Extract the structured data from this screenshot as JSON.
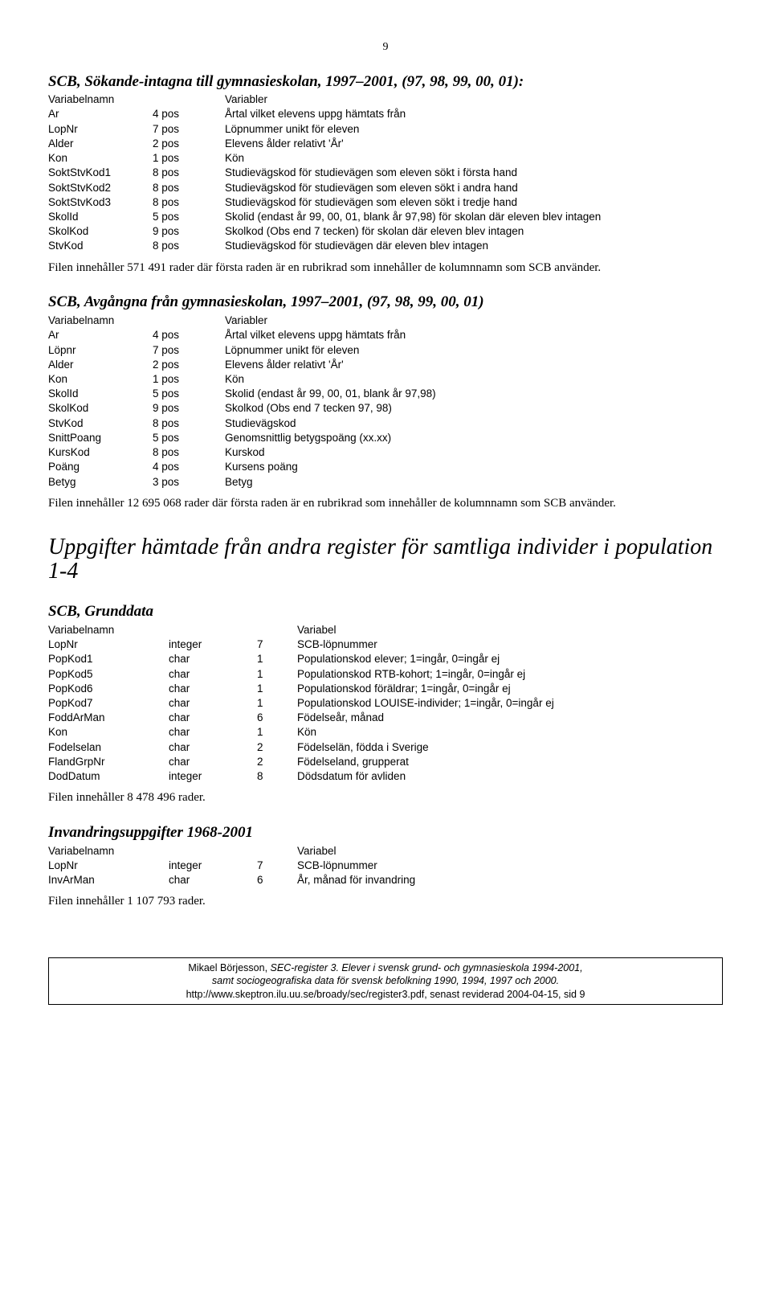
{
  "pageNumber": "9",
  "section1": {
    "title": "SCB, Sökande-intagna till gymnasieskolan, 1997–2001, (97, 98, 99, 00, 01):",
    "headers": [
      "Variabelnamn",
      "",
      "Variabler"
    ],
    "rows": [
      {
        "n": "Ar",
        "p": "4 pos",
        "d": "Årtal vilket elevens uppg hämtats från"
      },
      {
        "n": "LopNr",
        "p": "7 pos",
        "d": "Löpnummer unikt för eleven"
      },
      {
        "n": "Alder",
        "p": "2 pos",
        "d": "Elevens ålder relativt 'År'"
      },
      {
        "n": "Kon",
        "p": "1 pos",
        "d": "Kön"
      },
      {
        "n": "SoktStvKod1",
        "p": "8 pos",
        "d": "Studievägskod för studievägen som eleven sökt i första hand"
      },
      {
        "n": "SoktStvKod2",
        "p": "8 pos",
        "d": "Studievägskod för studievägen som eleven sökt i andra hand"
      },
      {
        "n": "SoktStvKod3",
        "p": "8 pos",
        "d": "Studievägskod för studievägen som eleven sökt i tredje hand"
      },
      {
        "n": "SkolId",
        "p": "5 pos",
        "d": "Skolid (endast år 99, 00, 01, blank år 97,98) för skolan där eleven blev intagen"
      },
      {
        "n": "SkolKod",
        "p": "9 pos",
        "d": "Skolkod (Obs end 7 tecken) för skolan där eleven blev intagen"
      },
      {
        "n": "StvKod",
        "p": "8 pos",
        "d": "Studievägskod för studievägen där eleven blev intagen"
      }
    ],
    "note": "Filen innehåller 571 491 rader där första raden är en rubrikrad som innehåller de kolumnnamn som SCB använder."
  },
  "section2": {
    "title": "SCB, Avgångna från gymnasieskolan, 1997–2001, (97, 98, 99, 00, 01)",
    "headers": [
      "Variabelnamn",
      "",
      "Variabler"
    ],
    "rows": [
      {
        "n": "Ar",
        "p": "4 pos",
        "d": "Årtal vilket elevens uppg hämtats från"
      },
      {
        "n": "Löpnr",
        "p": "7 pos",
        "d": "Löpnummer unikt för eleven"
      },
      {
        "n": "Alder",
        "p": "2 pos",
        "d": "Elevens ålder relativt 'År'"
      },
      {
        "n": "Kon",
        "p": "1 pos",
        "d": "Kön"
      },
      {
        "n": "SkolId",
        "p": "5 pos",
        "d": "Skolid (endast år 99, 00, 01, blank år 97,98)"
      },
      {
        "n": "SkolKod",
        "p": "9 pos",
        "d": "Skolkod (Obs end 7 tecken 97, 98)"
      },
      {
        "n": "StvKod",
        "p": "8 pos",
        "d": "Studievägskod"
      },
      {
        "n": "SnittPoang",
        "p": "5 pos",
        "d": "Genomsnittlig betygspoäng (xx.xx)"
      },
      {
        "n": "KursKod",
        "p": "8 pos",
        "d": "Kurskod"
      },
      {
        "n": "Poäng",
        "p": "4 pos",
        "d": "Kursens poäng"
      },
      {
        "n": "Betyg",
        "p": "3 pos",
        "d": "Betyg"
      }
    ],
    "note": "Filen innehåller 12 695 068 rader där första raden är en rubrikrad som innehåller de kolumnnamn som SCB använder."
  },
  "bigHeading": "Uppgifter hämtade från andra register för samtliga individer i population 1-4",
  "section3": {
    "title": "SCB, Grunddata",
    "headers": [
      "Variabelnamn",
      "",
      "",
      "Variabel"
    ],
    "rows": [
      {
        "n": "LopNr",
        "t": "integer",
        "l": "7",
        "d": "SCB-löpnummer"
      },
      {
        "n": "PopKod1",
        "t": "char",
        "l": "1",
        "d": "Populationskod elever; 1=ingår, 0=ingår ej"
      },
      {
        "n": "PopKod5",
        "t": "char",
        "l": "1",
        "d": "Populationskod RTB-kohort; 1=ingår, 0=ingår ej"
      },
      {
        "n": "PopKod6",
        "t": "char",
        "l": "1",
        "d": "Populationskod föräldrar; 1=ingår, 0=ingår ej"
      },
      {
        "n": "PopKod7",
        "t": "char",
        "l": "1",
        "d": "Populationskod LOUISE-individer; 1=ingår, 0=ingår ej"
      },
      {
        "n": "FoddArMan",
        "t": "char",
        "l": "6",
        "d": "Födelseår, månad"
      },
      {
        "n": "Kon",
        "t": "char",
        "l": "1",
        "d": "Kön"
      },
      {
        "n": "Fodelselan",
        "t": "char",
        "l": "2",
        "d": "Födelselän, födda i Sverige"
      },
      {
        "n": "FlandGrpNr",
        "t": "char",
        "l": "2",
        "d": "Födelseland, grupperat"
      },
      {
        "n": "DodDatum",
        "t": "integer",
        "l": "8",
        "d": "Dödsdatum för avliden"
      }
    ],
    "note": "Filen innehåller 8 478 496 rader."
  },
  "section4": {
    "title": "Invandringsuppgifter 1968-2001",
    "headers": [
      "Variabelnamn",
      "",
      "",
      "Variabel"
    ],
    "rows": [
      {
        "n": "LopNr",
        "t": "integer",
        "l": "7",
        "d": "SCB-löpnummer"
      },
      {
        "n": "InvArMan",
        "t": "char",
        "l": "6",
        "d": "År, månad för invandring"
      }
    ],
    "note": "Filen innehåller 1 107 793 rader."
  },
  "footer": {
    "line1a": "Mikael Börjesson, ",
    "line1b": "SEC-register 3. Elever i svensk grund- och gymnasieskola 1994-2001,",
    "line2": "samt sociogeografiska data för svensk befolkning 1990, 1994, 1997 och 2000.",
    "line3": "http://www.skeptron.ilu.uu.se/broady/sec/register3.pdf, senast reviderad 2004-04-15, sid 9"
  }
}
